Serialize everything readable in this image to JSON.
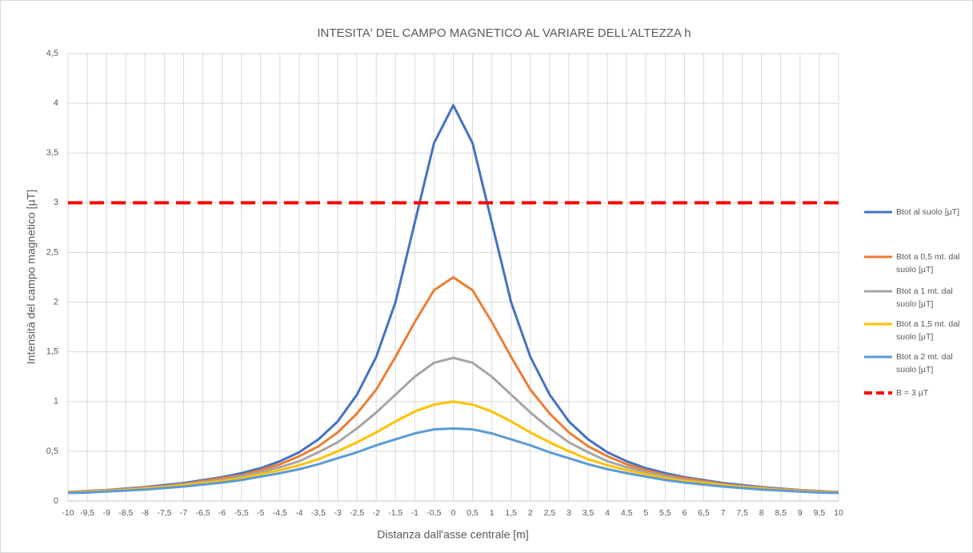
{
  "chart_data": {
    "type": "line",
    "title": "INTESITA' DEL CAMPO MAGNETICO AL VARIARE DELL'ALTEZZA h",
    "x_label": "Distanza dall'asse centrale [m]",
    "y_label": "Intensità del campo magnetico [µT]",
    "categories": [
      "-10",
      "-9,5",
      "-9",
      "-8,5",
      "-8",
      "-7,5",
      "-7",
      "-6,5",
      "-6",
      "-5,5",
      "-5",
      "-4,5",
      "-4",
      "-3,5",
      "-3",
      "-2,5",
      "-2",
      "-1,5",
      "-1",
      "-0,5",
      "0",
      "0,5",
      "1",
      "1,5",
      "2",
      "2,5",
      "3",
      "3,5",
      "4",
      "4,5",
      "5",
      "5,5",
      "6",
      "6,5",
      "7",
      "7,5",
      "8",
      "8,5",
      "9",
      "9,5",
      "10"
    ],
    "ylim": [
      0,
      4.5
    ],
    "yticks": [
      0,
      {
        "value": 0.5,
        "label": "0,5"
      },
      1,
      {
        "value": 1.5,
        "label": "1,5"
      },
      2,
      {
        "value": 2.5,
        "label": "2,5"
      },
      3,
      {
        "value": 3.5,
        "label": "3,5"
      },
      4,
      {
        "value": 4.5,
        "label": "4,5"
      }
    ],
    "grid": true,
    "legend": "right",
    "series": [
      {
        "name": "Btot al suolo [µT]",
        "color": "#4472c4",
        "values": [
          0.09,
          0.1,
          0.11,
          0.125,
          0.14,
          0.16,
          0.18,
          0.21,
          0.24,
          0.28,
          0.33,
          0.4,
          0.49,
          0.62,
          0.8,
          1.07,
          1.45,
          2.0,
          2.8,
          3.6,
          3.98,
          3.6,
          2.8,
          2.0,
          1.45,
          1.07,
          0.8,
          0.62,
          0.49,
          0.4,
          0.33,
          0.28,
          0.24,
          0.21,
          0.18,
          0.16,
          0.14,
          0.125,
          0.11,
          0.1,
          0.09
        ]
      },
      {
        "name": "Btot a 0,5 mt. dal suolo [µT]",
        "color": "#ed7d31",
        "values": [
          0.09,
          0.1,
          0.11,
          0.12,
          0.135,
          0.15,
          0.17,
          0.2,
          0.23,
          0.26,
          0.31,
          0.37,
          0.45,
          0.55,
          0.69,
          0.88,
          1.12,
          1.45,
          1.8,
          2.12,
          2.25,
          2.12,
          1.8,
          1.45,
          1.12,
          0.88,
          0.69,
          0.55,
          0.45,
          0.37,
          0.31,
          0.26,
          0.23,
          0.2,
          0.17,
          0.15,
          0.135,
          0.12,
          0.11,
          0.1,
          0.09
        ]
      },
      {
        "name": "Btot a 1 mt. dal suolo [µT]",
        "color": "#a5a5a5",
        "values": [
          0.085,
          0.095,
          0.105,
          0.115,
          0.13,
          0.145,
          0.165,
          0.19,
          0.21,
          0.25,
          0.29,
          0.34,
          0.4,
          0.49,
          0.59,
          0.73,
          0.89,
          1.07,
          1.25,
          1.39,
          1.44,
          1.39,
          1.25,
          1.07,
          0.89,
          0.73,
          0.59,
          0.49,
          0.4,
          0.34,
          0.29,
          0.25,
          0.21,
          0.19,
          0.165,
          0.145,
          0.13,
          0.115,
          0.105,
          0.095,
          0.085
        ]
      },
      {
        "name": "Btot a 1,5 mt. dal suolo [µT]",
        "color": "#ffc000",
        "values": [
          0.085,
          0.09,
          0.1,
          0.11,
          0.125,
          0.14,
          0.16,
          0.18,
          0.2,
          0.23,
          0.27,
          0.31,
          0.36,
          0.42,
          0.5,
          0.59,
          0.69,
          0.8,
          0.9,
          0.97,
          1.0,
          0.97,
          0.9,
          0.8,
          0.69,
          0.59,
          0.5,
          0.42,
          0.36,
          0.31,
          0.27,
          0.23,
          0.2,
          0.18,
          0.16,
          0.14,
          0.125,
          0.11,
          0.1,
          0.09,
          0.085
        ]
      },
      {
        "name": "Btot a 2 mt. dal suolo [µT]",
        "color": "#5b9bd5",
        "values": [
          0.08,
          0.085,
          0.095,
          0.105,
          0.115,
          0.13,
          0.145,
          0.165,
          0.185,
          0.21,
          0.245,
          0.28,
          0.32,
          0.37,
          0.43,
          0.49,
          0.56,
          0.62,
          0.68,
          0.72,
          0.73,
          0.72,
          0.68,
          0.62,
          0.56,
          0.49,
          0.43,
          0.37,
          0.32,
          0.28,
          0.245,
          0.21,
          0.185,
          0.165,
          0.145,
          0.13,
          0.115,
          0.105,
          0.095,
          0.085,
          0.08
        ]
      },
      {
        "name": "B = 3 µT",
        "color": "#ff0000",
        "dashed": true,
        "values": [
          3,
          3,
          3,
          3,
          3,
          3,
          3,
          3,
          3,
          3,
          3,
          3,
          3,
          3,
          3,
          3,
          3,
          3,
          3,
          3,
          3,
          3,
          3,
          3,
          3,
          3,
          3,
          3,
          3,
          3,
          3,
          3,
          3,
          3,
          3,
          3,
          3,
          3,
          3,
          3,
          3
        ]
      }
    ]
  }
}
